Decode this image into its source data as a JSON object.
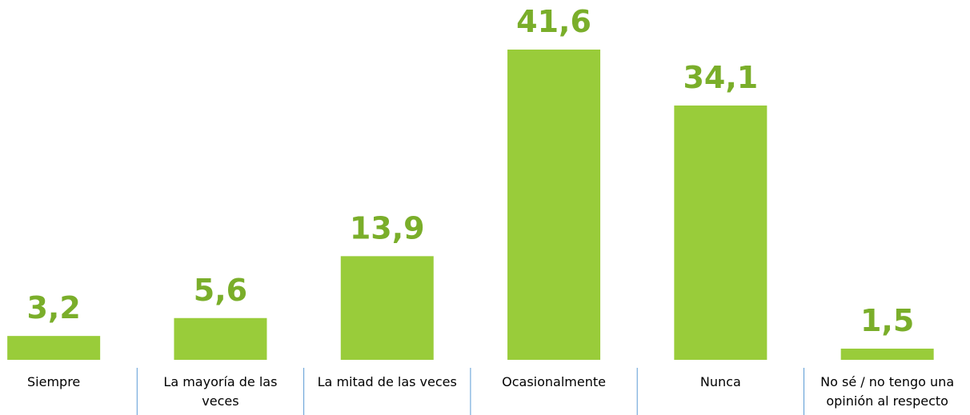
{
  "chart_data": {
    "type": "bar",
    "categories": [
      "Siempre",
      "La mayoría de las veces",
      "La mitad de las veces",
      "Ocasionalmente",
      "Nunca",
      "No sé / no tengo una opinión al respecto"
    ],
    "values": [
      3.2,
      5.6,
      13.9,
      41.6,
      34.1,
      1.5
    ],
    "value_labels": [
      "3,2",
      "5,6",
      "13,9",
      "41,6",
      "34,1",
      "1,5"
    ],
    "color": "#99cc3a"
  }
}
